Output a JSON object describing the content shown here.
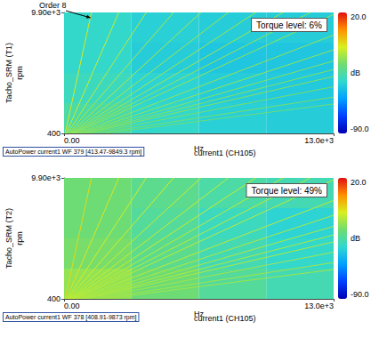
{
  "chart_data": [
    {
      "type": "heatmap",
      "title": "Torque level: 6%",
      "x_label": "Hz",
      "x_sublabel": "current1 (CH105)",
      "y_label": "Tacho_SRM (T1)",
      "y_unit": "rpm",
      "footer": "AutoPower current1 WF 379 [413.47-9849.3 rpm]",
      "xlim": [
        0,
        13000
      ],
      "xticks": [
        {
          "value": 0,
          "label": "0.00"
        },
        {
          "value": 13000,
          "label": "13.0e+3"
        }
      ],
      "ylim": [
        400,
        9900
      ],
      "yticks": [
        400,
        {
          "value": 9900,
          "label": "9.90e+3"
        }
      ],
      "cells": {
        "x_edges": [
          0,
          3250,
          6500,
          9750,
          13000
        ],
        "y_edges": [
          400,
          2775,
          5150,
          7525,
          9900
        ],
        "db": [
          [
            -36,
            -42,
            -45,
            -46
          ],
          [
            -40,
            -44,
            -46,
            -47
          ],
          [
            -42,
            -46,
            -48,
            -48
          ],
          [
            -42,
            -45,
            -46,
            -46
          ]
        ]
      },
      "order_lines": [
        {
          "x": [
            53,
            1320
          ],
          "y": [
            400,
            9900
          ],
          "db": -10
        },
        {
          "x": [
            107,
            2640
          ],
          "y": [
            400,
            9900
          ],
          "db": -14
        },
        {
          "x": [
            160,
            3960
          ],
          "y": [
            400,
            9900
          ],
          "db": -16
        },
        {
          "x": [
            213,
            5280
          ],
          "y": [
            400,
            9900
          ],
          "db": -18
        },
        {
          "x": [
            267,
            6600
          ],
          "y": [
            400,
            9900
          ],
          "db": -18
        },
        {
          "x": [
            320,
            7920
          ],
          "y": [
            400,
            9900
          ],
          "db": -20
        },
        {
          "x": [
            373,
            9240
          ],
          "y": [
            400,
            9900
          ],
          "db": -20
        },
        {
          "x": [
            427,
            10560
          ],
          "y": [
            400,
            9900
          ],
          "db": -20
        },
        {
          "x": [
            480,
            11880
          ],
          "y": [
            400,
            9900
          ],
          "db": -22
        },
        {
          "x": [
            533,
            13000
          ],
          "y": [
            400,
            9750
          ],
          "db": -22
        },
        {
          "x": [
            640,
            13000
          ],
          "y": [
            400,
            8125
          ],
          "db": -22
        },
        {
          "x": [
            747,
            13000
          ],
          "y": [
            400,
            6964
          ],
          "db": -22
        },
        {
          "x": [
            853,
            13000
          ],
          "y": [
            400,
            6094
          ],
          "db": -24
        },
        {
          "x": [
            960,
            13000
          ],
          "y": [
            400,
            5417
          ],
          "db": -24
        },
        {
          "x": [
            1067,
            13000
          ],
          "y": [
            400,
            4875
          ],
          "db": -24
        },
        {
          "x": [
            1280,
            13000
          ],
          "y": [
            400,
            4063
          ],
          "db": -26
        },
        {
          "x": [
            1600,
            13000
          ],
          "y": [
            400,
            3250
          ],
          "db": -26
        },
        {
          "x": [
            1920,
            13000
          ],
          "y": [
            400,
            2708
          ],
          "db": -28
        }
      ],
      "colorbar": {
        "label": "dB",
        "range": [
          -90,
          20
        ],
        "ticks": [
          {
            "value": 20,
            "label": "20.0"
          },
          {
            "value": -90,
            "label": "-90.0"
          }
        ]
      },
      "annotation": {
        "text": "Order 8",
        "x": 1320,
        "y": 9900
      }
    },
    {
      "type": "heatmap",
      "title": "Torque level: 49%",
      "x_label": "Hz",
      "x_sublabel": "current1 (CH105)",
      "y_label": "Tacho_SRM (T2)",
      "y_unit": "rpm",
      "footer": "AutoPower current1 WF 378 [408.91-9873 rpm]",
      "xlim": [
        0,
        13000
      ],
      "xticks": [
        {
          "value": 0,
          "label": "0.00"
        },
        {
          "value": 13000,
          "label": "13.0e+3"
        }
      ],
      "ylim": [
        400,
        9900
      ],
      "yticks": [
        400,
        {
          "value": 9900,
          "label": "9.90e+3"
        }
      ],
      "cells": {
        "x_edges": [
          0,
          3250,
          6500,
          9750,
          13000
        ],
        "y_edges": [
          400,
          2775,
          5150,
          7525,
          9900
        ],
        "db": [
          [
            -22,
            -28,
            -34,
            -38
          ],
          [
            -26,
            -32,
            -38,
            -42
          ],
          [
            -28,
            -34,
            -40,
            -44
          ],
          [
            -28,
            -32,
            -36,
            -38
          ]
        ]
      },
      "order_lines": [
        {
          "x": [
            53,
            1320
          ],
          "y": [
            400,
            9900
          ],
          "db": -8
        },
        {
          "x": [
            107,
            2640
          ],
          "y": [
            400,
            9900
          ],
          "db": -10
        },
        {
          "x": [
            160,
            3960
          ],
          "y": [
            400,
            9900
          ],
          "db": -12
        },
        {
          "x": [
            213,
            5280
          ],
          "y": [
            400,
            9900
          ],
          "db": -12
        },
        {
          "x": [
            267,
            6600
          ],
          "y": [
            400,
            9900
          ],
          "db": -14
        },
        {
          "x": [
            320,
            7920
          ],
          "y": [
            400,
            9900
          ],
          "db": -14
        },
        {
          "x": [
            373,
            9240
          ],
          "y": [
            400,
            9900
          ],
          "db": -14
        },
        {
          "x": [
            427,
            10560
          ],
          "y": [
            400,
            9900
          ],
          "db": -16
        },
        {
          "x": [
            480,
            11880
          ],
          "y": [
            400,
            9900
          ],
          "db": -16
        },
        {
          "x": [
            533,
            13000
          ],
          "y": [
            400,
            9750
          ],
          "db": -16
        },
        {
          "x": [
            640,
            13000
          ],
          "y": [
            400,
            8125
          ],
          "db": -16
        },
        {
          "x": [
            747,
            13000
          ],
          "y": [
            400,
            6964
          ],
          "db": -18
        },
        {
          "x": [
            853,
            13000
          ],
          "y": [
            400,
            6094
          ],
          "db": -18
        },
        {
          "x": [
            960,
            13000
          ],
          "y": [
            400,
            5417
          ],
          "db": -18
        },
        {
          "x": [
            1067,
            13000
          ],
          "y": [
            400,
            4875
          ],
          "db": -18
        },
        {
          "x": [
            1280,
            13000
          ],
          "y": [
            400,
            4063
          ],
          "db": -20
        },
        {
          "x": [
            1600,
            13000
          ],
          "y": [
            400,
            3250
          ],
          "db": -20
        },
        {
          "x": [
            1920,
            13000
          ],
          "y": [
            400,
            2708
          ],
          "db": -20
        }
      ],
      "colorbar": {
        "label": "dB",
        "range": [
          -90,
          20
        ],
        "ticks": [
          {
            "value": 20,
            "label": "20.0"
          },
          {
            "value": -90,
            "label": "-90.0"
          }
        ]
      }
    }
  ]
}
